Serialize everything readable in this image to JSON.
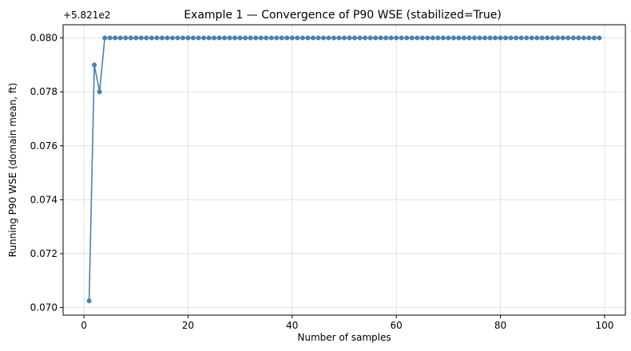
{
  "chart_data": {
    "type": "line",
    "title": "Example 1 — Convergence of P90 WSE  (stabilized=True)",
    "xlabel": "Number of samples",
    "ylabel": "Running P90 WSE (domain mean, ft)",
    "y_offset_label": "+5.821e2",
    "xlim": [
      -4.0,
      104.0
    ],
    "ylim": [
      0.06972,
      0.08049
    ],
    "x_ticks": [
      0,
      20,
      40,
      60,
      80,
      100
    ],
    "x_tick_labels": [
      "0",
      "20",
      "40",
      "60",
      "80",
      "100"
    ],
    "y_ticks": [
      0.07,
      0.072,
      0.074,
      0.076,
      0.078,
      0.08
    ],
    "y_tick_labels": [
      "0.070",
      "0.072",
      "0.074",
      "0.076",
      "0.078",
      "0.080"
    ],
    "grid": true,
    "line_color": "#4682b4",
    "series": [
      {
        "x": [
          1,
          2,
          3,
          4,
          5,
          6,
          7,
          8,
          9,
          10,
          11,
          12,
          13,
          14,
          15,
          16,
          17,
          18,
          19,
          20,
          21,
          22,
          23,
          24,
          25,
          26,
          27,
          28,
          29,
          30,
          31,
          32,
          33,
          34,
          35,
          36,
          37,
          38,
          39,
          40,
          41,
          42,
          43,
          44,
          45,
          46,
          47,
          48,
          49,
          50,
          51,
          52,
          53,
          54,
          55,
          56,
          57,
          58,
          59,
          60,
          61,
          62,
          63,
          64,
          65,
          66,
          67,
          68,
          69,
          70,
          71,
          72,
          73,
          74,
          75,
          76,
          77,
          78,
          79,
          80,
          81,
          82,
          83,
          84,
          85,
          86,
          87,
          88,
          89,
          90,
          91,
          92,
          93,
          94,
          95,
          96,
          97,
          98,
          99
        ],
        "y": [
          0.07025,
          0.079,
          0.078,
          0.08,
          0.08,
          0.08,
          0.08,
          0.08,
          0.08,
          0.08,
          0.08,
          0.08,
          0.08,
          0.08,
          0.08,
          0.08,
          0.08,
          0.08,
          0.08,
          0.08,
          0.08,
          0.08,
          0.08,
          0.08,
          0.08,
          0.08,
          0.08,
          0.08,
          0.08,
          0.08,
          0.08,
          0.08,
          0.08,
          0.08,
          0.08,
          0.08,
          0.08,
          0.08,
          0.08,
          0.08,
          0.08,
          0.08,
          0.08,
          0.08,
          0.08,
          0.08,
          0.08,
          0.08,
          0.08,
          0.08,
          0.08,
          0.08,
          0.08,
          0.08,
          0.08,
          0.08,
          0.08,
          0.08,
          0.08,
          0.08,
          0.08,
          0.08,
          0.08,
          0.08,
          0.08,
          0.08,
          0.08,
          0.08,
          0.08,
          0.08,
          0.08,
          0.08,
          0.08,
          0.08,
          0.08,
          0.08,
          0.08,
          0.08,
          0.08,
          0.08,
          0.08,
          0.08,
          0.08,
          0.08,
          0.08,
          0.08,
          0.08,
          0.08,
          0.08,
          0.08,
          0.08,
          0.08,
          0.08,
          0.08,
          0.08,
          0.08,
          0.08,
          0.08,
          0.08
        ]
      }
    ]
  }
}
